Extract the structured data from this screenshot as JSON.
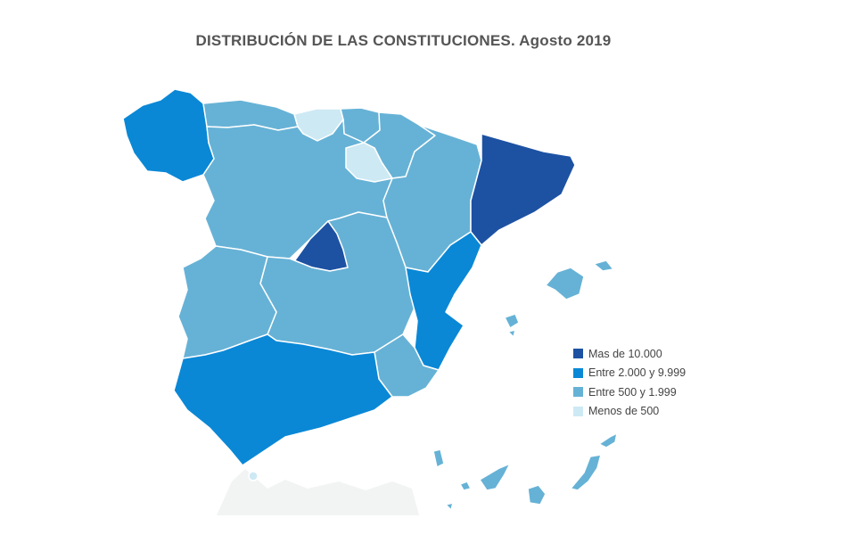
{
  "title": "DISTRIBUCIÓN DE LAS CONSTITUCIONES. Agosto 2019",
  "colors": {
    "c1": "#1d52a3",
    "c2": "#0a88d6",
    "c3": "#66b2d6",
    "c4": "#cde9f4",
    "border": "#ffffff"
  },
  "legend": [
    {
      "label": "Mas de 10.000",
      "color": "#1d52a3"
    },
    {
      "label": "Entre 2.000 y 9.999",
      "color": "#0a88d6"
    },
    {
      "label": "Entre 500 y  1.999",
      "color": "#66b2d6"
    },
    {
      "label": "Menos de 500",
      "color": "#cde9f4"
    }
  ],
  "regions": [
    {
      "name": "Galicia",
      "class": "Entre 2.000 y 9.999"
    },
    {
      "name": "Asturias",
      "class": "Entre 500 y  1.999"
    },
    {
      "name": "Cantabria",
      "class": "Menos de 500"
    },
    {
      "name": "País Vasco",
      "class": "Entre 500 y  1.999"
    },
    {
      "name": "Navarra",
      "class": "Entre 500 y  1.999"
    },
    {
      "name": "La Rioja",
      "class": "Menos de 500"
    },
    {
      "name": "Aragón",
      "class": "Entre 500 y  1.999"
    },
    {
      "name": "Cataluña",
      "class": "Mas de 10.000"
    },
    {
      "name": "Castilla y León",
      "class": "Entre 500 y  1.999"
    },
    {
      "name": "Madrid",
      "class": "Mas de 10.000"
    },
    {
      "name": "Castilla-La Mancha",
      "class": "Entre 500 y  1.999"
    },
    {
      "name": "Comunidad Valenciana",
      "class": "Entre 2.000 y 9.999"
    },
    {
      "name": "Extremadura",
      "class": "Entre 500 y  1.999"
    },
    {
      "name": "Murcia",
      "class": "Entre 500 y  1.999"
    },
    {
      "name": "Andalucía",
      "class": "Entre 2.000 y 9.999"
    },
    {
      "name": "Islas Baleares",
      "class": "Entre 500 y  1.999"
    },
    {
      "name": "Canarias",
      "class": "Entre 500 y  1.999"
    },
    {
      "name": "Ceuta",
      "class": "Menos de 500"
    }
  ]
}
